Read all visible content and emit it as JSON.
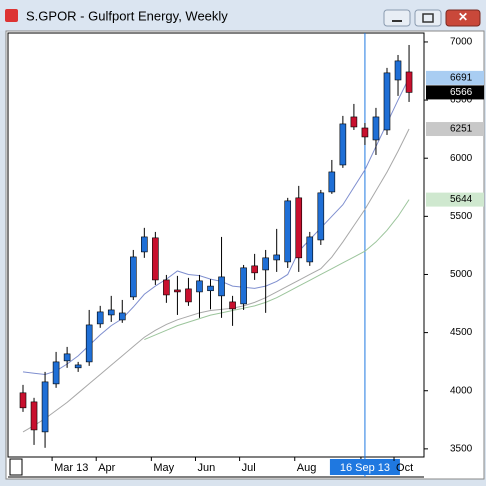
{
  "chart_data": {
    "type": "candlestick",
    "title": "S.GPOR - Gulfport Energy, Weekly",
    "categories": [
      null,
      null,
      null,
      "Mar 13",
      null,
      null,
      null,
      "Apr",
      null,
      null,
      null,
      null,
      "May",
      null,
      null,
      null,
      "Jun",
      null,
      null,
      null,
      "Jul",
      null,
      null,
      null,
      null,
      "Aug",
      null,
      null,
      null,
      null,
      null,
      "16 Sep 13",
      null,
      null,
      "Oct",
      null
    ],
    "crosshair_index": 31,
    "open": [
      3982,
      3904,
      3646,
      4059,
      4257,
      4197,
      4248,
      4575,
      4652,
      4609,
      4807,
      5194,
      5315,
      4953,
      4867,
      4876,
      4850,
      4860,
      4816,
      4764,
      4747,
      5074,
      5039,
      5125,
      5108,
      5659,
      5108,
      5297,
      5710,
      5942,
      6355,
      6260,
      6157,
      6243,
      6673,
      6742
    ],
    "high": [
      4050,
      3939,
      4162,
      4334,
      4377,
      4248,
      4695,
      4730,
      4816,
      4781,
      5211,
      5401,
      5366,
      4996,
      4988,
      4971,
      4996,
      4960,
      5323,
      4816,
      5082,
      5177,
      5211,
      5392,
      5659,
      5762,
      5366,
      5727,
      5985,
      6364,
      6467,
      6303,
      6433,
      6777,
      6888,
      6974
    ],
    "low": [
      3818,
      3534,
      3509,
      4025,
      4197,
      4162,
      4214,
      4541,
      4592,
      4584,
      4781,
      5143,
      4910,
      4756,
      4652,
      4730,
      4627,
      4700,
      4627,
      4558,
      4695,
      4953,
      4670,
      5022,
      5056,
      5022,
      5074,
      5254,
      5693,
      5917,
      6243,
      6114,
      6028,
      6200,
      6536,
      6484
    ],
    "close": [
      3853,
      3663,
      4076,
      4248,
      4317,
      4222,
      4566,
      4678,
      4695,
      4669,
      5151,
      5323,
      4953,
      4824,
      4850,
      4764,
      4945,
      4900,
      4979,
      4704,
      5057,
      5014,
      5143,
      5168,
      5633,
      5143,
      5323,
      5702,
      5882,
      6295,
      6269,
      6183,
      6355,
      6734,
      6837,
      6566
    ],
    "up_color": "#1f6fd6",
    "down_color": "#c8102e",
    "series": [
      {
        "color": "#7f8fcf",
        "values": [
          4162,
          4150,
          4140,
          4170,
          4230,
          4300,
          4390,
          4480,
          4560,
          4620,
          4720,
          4830,
          4900,
          4960,
          5030,
          5000,
          4990,
          4960,
          4940,
          4900,
          4890,
          4880,
          4900,
          4940,
          5000,
          5200,
          5300,
          5400,
          5500,
          5600,
          5750,
          5900,
          6100,
          6300,
          6500,
          6691
        ]
      },
      {
        "color": "#a8a8a8",
        "values": [
          3646,
          3700,
          3760,
          3830,
          3900,
          3980,
          4060,
          4140,
          4220,
          4300,
          4380,
          4460,
          4520,
          4570,
          4610,
          4640,
          4670,
          4690,
          4700,
          4710,
          4730,
          4760,
          4800,
          4850,
          4900,
          4950,
          5000,
          5050,
          5150,
          5280,
          5420,
          5560,
          5720,
          5880,
          6060,
          6251
        ]
      },
      {
        "color": "#9cc59c",
        "values": [
          null,
          null,
          null,
          null,
          null,
          null,
          null,
          null,
          null,
          null,
          null,
          4440,
          4480,
          4520,
          4560,
          4590,
          4620,
          4650,
          4670,
          4690,
          4710,
          4730,
          4760,
          4800,
          4850,
          4900,
          4950,
          5000,
          5050,
          5100,
          5150,
          5200,
          5280,
          5380,
          5500,
          5644
        ]
      }
    ],
    "price_labels": [
      {
        "value": 6691,
        "color": "#a9cdf2",
        "text_color": "#000000"
      },
      {
        "value": 6566,
        "color": "#000000",
        "text_color": "#ffffff"
      },
      {
        "value": 6251,
        "color": "#c8c8c8",
        "text_color": "#000000"
      },
      {
        "value": 5644,
        "color": "#cfe8cf",
        "text_color": "#000000"
      }
    ],
    "ylim": [
      3430,
      7077
    ],
    "yticks": [
      3500,
      4000,
      4500,
      5000,
      5500,
      6000,
      6500,
      7000
    ]
  }
}
